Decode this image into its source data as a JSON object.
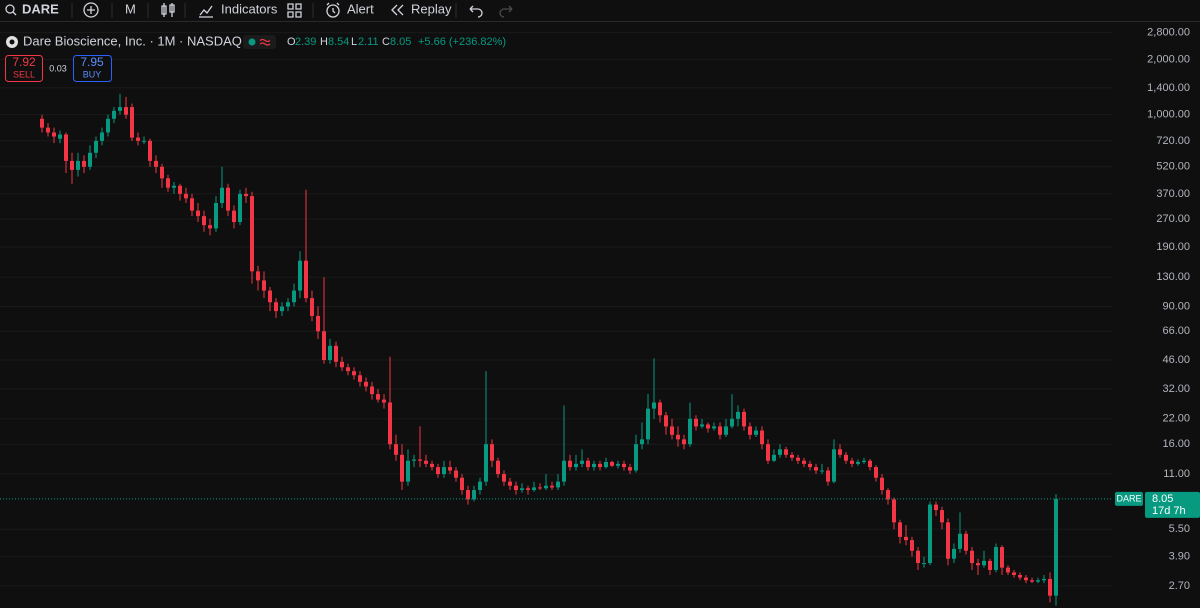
{
  "toolbar": {
    "symbol": "DARE",
    "interval": "M",
    "indicators": "Indicators",
    "alert": "Alert",
    "replay": "Replay"
  },
  "legend": {
    "title": "Dare Bioscience, Inc. · 1M · NASDAQ",
    "o_label": "O",
    "h_label": "H",
    "l_label": "L",
    "c_label": "C",
    "change": "+5.66 (+236.82%)"
  },
  "trade": {
    "sell_price": "7.92",
    "sell": "SELL",
    "spread": "0.03",
    "buy_price": "7.95",
    "buy": "BUY"
  },
  "price_label": {
    "symbol": "DARE",
    "countdown": "17d 7h"
  },
  "chart_data": {
    "type": "candlestick",
    "up_color": "#089981",
    "down_color": "#f23645",
    "log_scale": true,
    "grid": true,
    "ylim": [
      2.1,
      3200
    ],
    "yticks": [
      {
        "value": 2800,
        "label": "2,800.00"
      },
      {
        "value": 2000,
        "label": "2,000.00"
      },
      {
        "value": 1400,
        "label": "1,400.00"
      },
      {
        "value": 1000,
        "label": "1,000.00"
      },
      {
        "value": 720,
        "label": "720.00"
      },
      {
        "value": 520,
        "label": "520.00"
      },
      {
        "value": 370,
        "label": "370.00"
      },
      {
        "value": 270,
        "label": "270.00"
      },
      {
        "value": 190,
        "label": "190.00"
      },
      {
        "value": 130,
        "label": "130.00"
      },
      {
        "value": 90,
        "label": "90.00"
      },
      {
        "value": 66,
        "label": "66.00"
      },
      {
        "value": 46,
        "label": "46.00"
      },
      {
        "value": 32,
        "label": "32.00"
      },
      {
        "value": 22,
        "label": "22.00"
      },
      {
        "value": 16,
        "label": "16.00"
      },
      {
        "value": 11,
        "label": "11.00"
      },
      {
        "value": 5.5,
        "label": "5.50"
      },
      {
        "value": 3.9,
        "label": "3.90"
      },
      {
        "value": 2.7,
        "label": "2.70"
      }
    ],
    "candles": [
      [
        950,
        1000,
        800,
        850
      ],
      [
        850,
        900,
        760,
        800
      ],
      [
        800,
        850,
        700,
        760
      ],
      [
        740,
        820,
        700,
        780
      ],
      [
        780,
        800,
        480,
        560
      ],
      [
        560,
        620,
        420,
        500
      ],
      [
        500,
        620,
        460,
        560
      ],
      [
        560,
        600,
        480,
        520
      ],
      [
        520,
        680,
        500,
        620
      ],
      [
        620,
        760,
        580,
        720
      ],
      [
        720,
        850,
        680,
        800
      ],
      [
        800,
        1000,
        760,
        950
      ],
      [
        950,
        1100,
        900,
        1050
      ],
      [
        1050,
        1300,
        1000,
        1100
      ],
      [
        1100,
        1250,
        950,
        1000
      ],
      [
        1100,
        1150,
        720,
        750
      ],
      [
        750,
        800,
        680,
        720
      ],
      [
        720,
        760,
        690,
        720
      ],
      [
        720,
        740,
        520,
        560
      ],
      [
        560,
        600,
        480,
        520
      ],
      [
        520,
        540,
        400,
        450
      ],
      [
        450,
        470,
        380,
        400
      ],
      [
        400,
        430,
        370,
        410
      ],
      [
        410,
        420,
        340,
        370
      ],
      [
        370,
        400,
        330,
        350
      ],
      [
        350,
        370,
        280,
        300
      ],
      [
        300,
        330,
        260,
        280
      ],
      [
        280,
        300,
        230,
        250
      ],
      [
        250,
        270,
        220,
        240
      ],
      [
        240,
        360,
        230,
        330
      ],
      [
        330,
        520,
        310,
        400
      ],
      [
        400,
        420,
        280,
        300
      ],
      [
        300,
        320,
        240,
        260
      ],
      [
        260,
        390,
        250,
        370
      ],
      [
        370,
        400,
        330,
        360
      ],
      [
        360,
        380,
        120,
        140
      ],
      [
        140,
        150,
        110,
        125
      ],
      [
        125,
        140,
        100,
        110
      ],
      [
        110,
        115,
        85,
        95
      ],
      [
        95,
        100,
        78,
        85
      ],
      [
        85,
        95,
        80,
        90
      ],
      [
        90,
        100,
        85,
        95
      ],
      [
        95,
        120,
        90,
        110
      ],
      [
        110,
        180,
        100,
        160
      ],
      [
        160,
        390,
        95,
        100
      ],
      [
        100,
        110,
        75,
        80
      ],
      [
        80,
        90,
        60,
        66
      ],
      [
        66,
        130,
        44,
        46
      ],
      [
        46,
        60,
        44,
        55
      ],
      [
        55,
        58,
        42,
        45
      ],
      [
        45,
        48,
        40,
        42
      ],
      [
        42,
        44,
        38,
        40
      ],
      [
        40,
        42,
        36,
        38
      ],
      [
        38,
        40,
        33,
        35
      ],
      [
        35,
        37,
        31,
        33
      ],
      [
        33,
        35,
        28,
        30
      ],
      [
        30,
        32,
        27,
        28
      ],
      [
        28,
        30,
        25,
        27
      ],
      [
        27,
        48,
        15,
        16
      ],
      [
        16,
        18,
        13,
        14
      ],
      [
        14,
        16,
        9,
        10
      ],
      [
        10,
        15,
        9.5,
        13
      ],
      [
        13,
        14,
        12,
        13.2
      ],
      [
        13.2,
        20,
        12,
        13
      ],
      [
        13,
        14,
        12,
        12.5
      ],
      [
        12.5,
        13,
        11.5,
        12
      ],
      [
        12,
        12.5,
        10.5,
        11
      ],
      [
        11,
        13,
        10.5,
        12
      ],
      [
        12,
        13,
        11,
        11.5
      ],
      [
        11.5,
        12,
        10,
        10.5
      ],
      [
        10.5,
        11,
        8.5,
        9
      ],
      [
        9,
        9.5,
        7.5,
        8
      ],
      [
        8,
        9.5,
        7.8,
        9
      ],
      [
        9,
        10.5,
        8.5,
        10
      ],
      [
        10,
        40,
        9.5,
        16
      ],
      [
        16,
        17,
        12,
        13
      ],
      [
        13,
        13.5,
        10.5,
        11
      ],
      [
        11,
        11.5,
        9.5,
        10
      ],
      [
        10,
        10.5,
        9,
        9.5
      ],
      [
        9.5,
        10,
        8.5,
        9
      ],
      [
        9,
        9.8,
        8.7,
        9.2
      ],
      [
        9.2,
        9.5,
        8.5,
        9
      ],
      [
        9,
        10,
        8.8,
        9.3
      ],
      [
        9.3,
        9.8,
        9,
        9.2
      ],
      [
        9.2,
        11,
        9,
        9.5
      ],
      [
        9.5,
        10,
        9,
        9.3
      ],
      [
        9.3,
        11,
        9,
        10
      ],
      [
        10,
        26,
        9.5,
        13
      ],
      [
        13,
        14,
        11.5,
        12
      ],
      [
        12,
        14,
        11.5,
        12.5
      ],
      [
        12.5,
        15,
        12,
        13
      ],
      [
        13,
        13.5,
        11.5,
        12
      ],
      [
        12,
        13,
        11.5,
        12.5
      ],
      [
        12.5,
        13,
        11.5,
        12
      ],
      [
        12,
        13.5,
        11.8,
        12.8
      ],
      [
        12.8,
        13,
        12,
        12.2
      ],
      [
        12.2,
        13,
        11.8,
        12.5
      ],
      [
        12.5,
        13,
        11.5,
        12
      ],
      [
        12,
        12.5,
        11,
        11.5
      ],
      [
        11.5,
        18,
        11.2,
        16
      ],
      [
        16,
        21,
        15,
        17
      ],
      [
        17,
        30,
        16,
        25
      ],
      [
        25,
        47,
        22,
        27
      ],
      [
        27,
        28,
        21,
        23
      ],
      [
        23,
        24,
        18,
        20
      ],
      [
        20,
        22,
        17,
        18
      ],
      [
        18,
        20,
        15.5,
        17
      ],
      [
        17,
        18,
        15,
        16
      ],
      [
        16,
        27,
        15.5,
        22
      ],
      [
        22,
        23,
        19,
        20
      ],
      [
        20,
        22,
        19.5,
        20.5
      ],
      [
        20.5,
        21,
        18.5,
        19.5
      ],
      [
        19.5,
        21,
        19,
        20
      ],
      [
        20,
        21,
        17,
        18
      ],
      [
        18,
        22,
        17.5,
        20
      ],
      [
        20,
        30,
        19.5,
        22
      ],
      [
        22,
        26,
        20,
        24
      ],
      [
        24,
        25,
        19,
        20
      ],
      [
        20,
        21,
        17,
        18
      ],
      [
        18,
        20,
        17.5,
        19
      ],
      [
        19,
        20,
        15,
        16
      ],
      [
        16,
        17,
        12.5,
        13
      ],
      [
        13,
        15,
        12.8,
        14
      ],
      [
        14,
        16,
        13.5,
        15
      ],
      [
        15,
        15.5,
        13.5,
        14
      ],
      [
        14,
        14.5,
        13,
        13.5
      ],
      [
        13.5,
        14,
        12.5,
        13
      ],
      [
        13,
        13.5,
        12,
        12.5
      ],
      [
        12.5,
        13,
        11.5,
        12
      ],
      [
        12,
        12.5,
        11,
        11.5
      ],
      [
        11.5,
        12.5,
        11,
        11.5
      ],
      [
        11.5,
        12,
        9.5,
        10
      ],
      [
        10,
        17,
        9.8,
        15
      ],
      [
        15,
        16,
        13.5,
        14
      ],
      [
        14,
        14.5,
        12.5,
        13
      ],
      [
        13,
        13.5,
        12,
        12.5
      ],
      [
        12.5,
        13.2,
        12.2,
        12.8
      ],
      [
        12.8,
        13.5,
        12.5,
        13
      ],
      [
        13,
        13.3,
        11.5,
        12
      ],
      [
        12,
        12.3,
        10,
        10.5
      ],
      [
        10.5,
        11,
        8.5,
        9
      ],
      [
        9,
        9.2,
        7.5,
        8
      ],
      [
        8,
        8.2,
        5.5,
        6
      ],
      [
        6,
        6.2,
        4.6,
        5
      ],
      [
        5,
        5.8,
        4.5,
        4.8
      ],
      [
        4.8,
        5,
        3.9,
        4.2
      ],
      [
        4.2,
        4.4,
        3.3,
        3.6
      ],
      [
        3.6,
        3.9,
        3.4,
        3.6
      ],
      [
        3.6,
        7.8,
        3.5,
        7.5
      ],
      [
        7.5,
        7.8,
        6.5,
        7
      ],
      [
        7,
        7.3,
        5.5,
        6
      ],
      [
        6,
        6.3,
        3.5,
        3.8
      ],
      [
        3.8,
        4.6,
        3.6,
        4.3
      ],
      [
        4.3,
        6.8,
        4.1,
        5.2
      ],
      [
        5.2,
        5.4,
        4,
        4.2
      ],
      [
        4.2,
        4.4,
        3.3,
        3.6
      ],
      [
        3.6,
        3.8,
        3.1,
        3.5
      ],
      [
        3.5,
        4.2,
        3.4,
        3.7
      ],
      [
        3.7,
        3.8,
        3.1,
        3.3
      ],
      [
        3.3,
        4.6,
        3.2,
        4.4
      ],
      [
        4.4,
        4.5,
        3.1,
        3.4
      ],
      [
        3.4,
        3.5,
        3.1,
        3.2
      ],
      [
        3.2,
        3.3,
        3,
        3.1
      ],
      [
        3.1,
        3.2,
        2.9,
        3
      ],
      [
        3,
        3.1,
        2.8,
        2.9
      ],
      [
        2.9,
        3,
        2.8,
        2.85
      ],
      [
        2.85,
        3,
        2.8,
        2.9
      ],
      [
        2.9,
        3.1,
        2.8,
        2.95
      ],
      [
        2.95,
        3.2,
        2.2,
        2.39
      ],
      [
        2.39,
        8.54,
        2.11,
        8.05
      ]
    ]
  }
}
